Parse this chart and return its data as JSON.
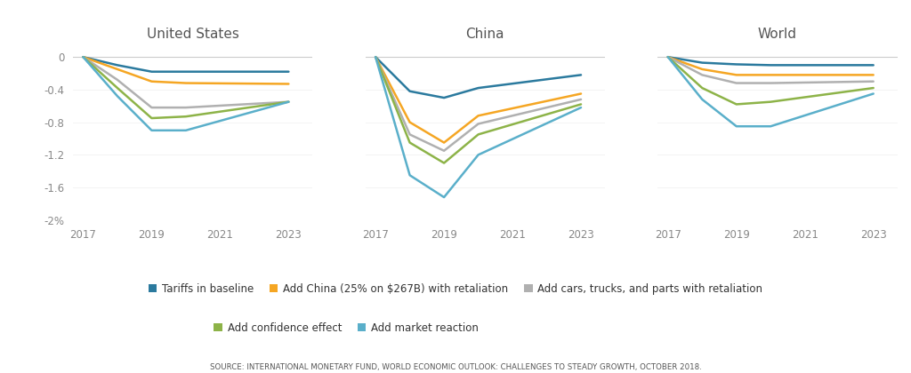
{
  "panels": [
    {
      "title": "United States",
      "series": {
        "tariffs": [
          0.0,
          -0.1,
          -0.18,
          -0.18,
          -0.18
        ],
        "china": [
          0.0,
          -0.15,
          -0.3,
          -0.32,
          -0.33
        ],
        "cars": [
          0.0,
          -0.28,
          -0.62,
          -0.62,
          -0.55
        ],
        "confidence": [
          0.0,
          -0.38,
          -0.75,
          -0.73,
          -0.55
        ],
        "market": [
          0.0,
          -0.48,
          -0.9,
          -0.9,
          -0.55
        ]
      }
    },
    {
      "title": "China",
      "series": {
        "tariffs": [
          0.0,
          -0.42,
          -0.5,
          -0.38,
          -0.22
        ],
        "china": [
          0.0,
          -0.8,
          -1.05,
          -0.72,
          -0.45
        ],
        "cars": [
          0.0,
          -0.95,
          -1.15,
          -0.82,
          -0.52
        ],
        "confidence": [
          0.0,
          -1.05,
          -1.3,
          -0.95,
          -0.58
        ],
        "market": [
          0.0,
          -1.45,
          -1.72,
          -1.2,
          -0.62
        ]
      }
    },
    {
      "title": "World",
      "series": {
        "tariffs": [
          0.0,
          -0.07,
          -0.09,
          -0.1,
          -0.1
        ],
        "china": [
          0.0,
          -0.15,
          -0.22,
          -0.22,
          -0.22
        ],
        "cars": [
          0.0,
          -0.22,
          -0.32,
          -0.32,
          -0.3
        ],
        "confidence": [
          0.0,
          -0.38,
          -0.58,
          -0.55,
          -0.38
        ],
        "market": [
          0.0,
          -0.52,
          -0.85,
          -0.85,
          -0.45
        ]
      }
    }
  ],
  "x_points": [
    2017,
    2018,
    2019,
    2020,
    2023
  ],
  "ylim": [
    -2.0,
    0.15
  ],
  "yticks": [
    0,
    -0.4,
    -0.8,
    -1.2,
    -1.6,
    -2.0
  ],
  "ytick_labels": [
    "0",
    "-0.4",
    "-0.8",
    "-1.2",
    "-1.6",
    "-2%"
  ],
  "xticks": [
    2017,
    2019,
    2021,
    2023
  ],
  "colors": {
    "tariffs": "#2b7a9e",
    "china": "#f5a623",
    "cars": "#b0b0b0",
    "confidence": "#8db348",
    "market": "#5aafca"
  },
  "legend_row1": [
    {
      "key": "tariffs",
      "label": "Tariffs in baseline"
    },
    {
      "key": "china",
      "label": "Add China (25% on $267B) with retaliation"
    },
    {
      "key": "cars",
      "label": "Add cars, trucks, and parts with retaliation"
    }
  ],
  "legend_row2": [
    {
      "key": "confidence",
      "label": "Add confidence effect"
    },
    {
      "key": "market",
      "label": "Add market reaction"
    }
  ],
  "source_text": "SOURCE: INTERNATIONAL MONETARY FUND, WORLD ECONOMIC OUTLOOK: CHALLENGES TO STEADY GROWTH, OCTOBER 2018.",
  "line_width": 1.8,
  "background_color": "#ffffff"
}
